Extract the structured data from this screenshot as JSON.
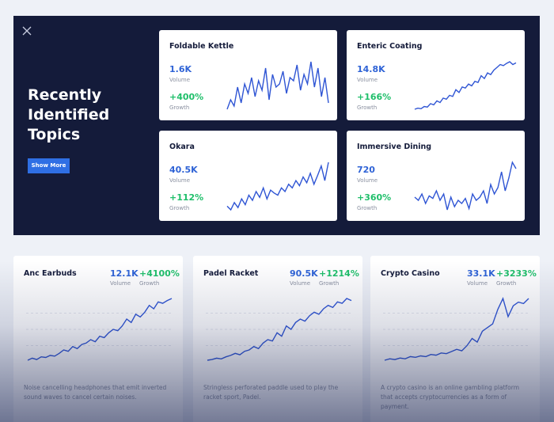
{
  "hero": {
    "title": "Recently Identified Topics",
    "button": "Show More"
  },
  "labels": {
    "volume": "Volume",
    "growth": "Growth"
  },
  "topics": [
    {
      "name": "Foldable Kettle",
      "volume": "1.6K",
      "growth": "+400%",
      "trend": [
        20,
        35,
        25,
        55,
        30,
        60,
        45,
        70,
        40,
        65,
        50,
        85,
        35,
        75,
        55,
        60,
        80,
        45,
        70,
        65,
        90,
        50,
        75,
        60,
        95,
        55,
        85,
        40,
        70,
        30
      ]
    },
    {
      "name": "Enteric Coating",
      "volume": "14.8K",
      "growth": "+166%",
      "trend": [
        10,
        12,
        11,
        15,
        14,
        20,
        18,
        25,
        22,
        30,
        28,
        35,
        33,
        45,
        40,
        50,
        48,
        55,
        52,
        60,
        58,
        70,
        65,
        75,
        72,
        80,
        85,
        90,
        88,
        92,
        95,
        90,
        93
      ]
    },
    {
      "name": "Okara",
      "volume": "40.5K",
      "growth": "+112%",
      "trend": [
        30,
        25,
        35,
        28,
        40,
        32,
        45,
        38,
        50,
        42,
        55,
        40,
        52,
        48,
        45,
        55,
        50,
        60,
        55,
        65,
        58,
        70,
        62,
        75,
        60,
        72,
        85,
        65,
        90
      ]
    },
    {
      "name": "Immersive Dining",
      "volume": "720",
      "growth": "+360%",
      "trend": [
        40,
        35,
        45,
        30,
        42,
        38,
        50,
        35,
        45,
        20,
        40,
        25,
        35,
        30,
        38,
        22,
        45,
        35,
        40,
        50,
        30,
        60,
        45,
        55,
        80,
        50,
        70,
        95,
        85
      ]
    }
  ],
  "featured": [
    {
      "name": "Anc Earbuds",
      "volume": "12.1K",
      "growth": "+4100%",
      "description": "Noise cancelling headphones that emit inverted sound waves to cancel certain noises.",
      "trend": [
        5,
        8,
        6,
        10,
        9,
        12,
        11,
        15,
        20,
        18,
        25,
        22,
        28,
        30,
        35,
        32,
        40,
        38,
        45,
        50,
        48,
        55,
        65,
        60,
        72,
        68,
        75,
        85,
        80,
        90,
        88,
        92,
        95
      ]
    },
    {
      "name": "Padel Racket",
      "volume": "90.5K",
      "growth": "+1214%",
      "description": "Stringless perforated paddle used to play the racket sport, Padel.",
      "trend": [
        5,
        6,
        8,
        7,
        10,
        12,
        15,
        13,
        18,
        20,
        25,
        22,
        30,
        35,
        33,
        45,
        40,
        55,
        50,
        60,
        65,
        62,
        70,
        75,
        72,
        80,
        85,
        82,
        90,
        88,
        95,
        92
      ]
    },
    {
      "name": "Crypto Casino",
      "volume": "33.1K",
      "growth": "+3233%",
      "description": "A crypto casino is an online gambling platform that accepts cryptocurrencies as a form of payment.",
      "trend": [
        10,
        12,
        11,
        13,
        12,
        15,
        14,
        16,
        15,
        18,
        17,
        20,
        19,
        22,
        25,
        23,
        30,
        40,
        35,
        50,
        55,
        60,
        80,
        95,
        70,
        85,
        90,
        88,
        95
      ]
    }
  ]
}
